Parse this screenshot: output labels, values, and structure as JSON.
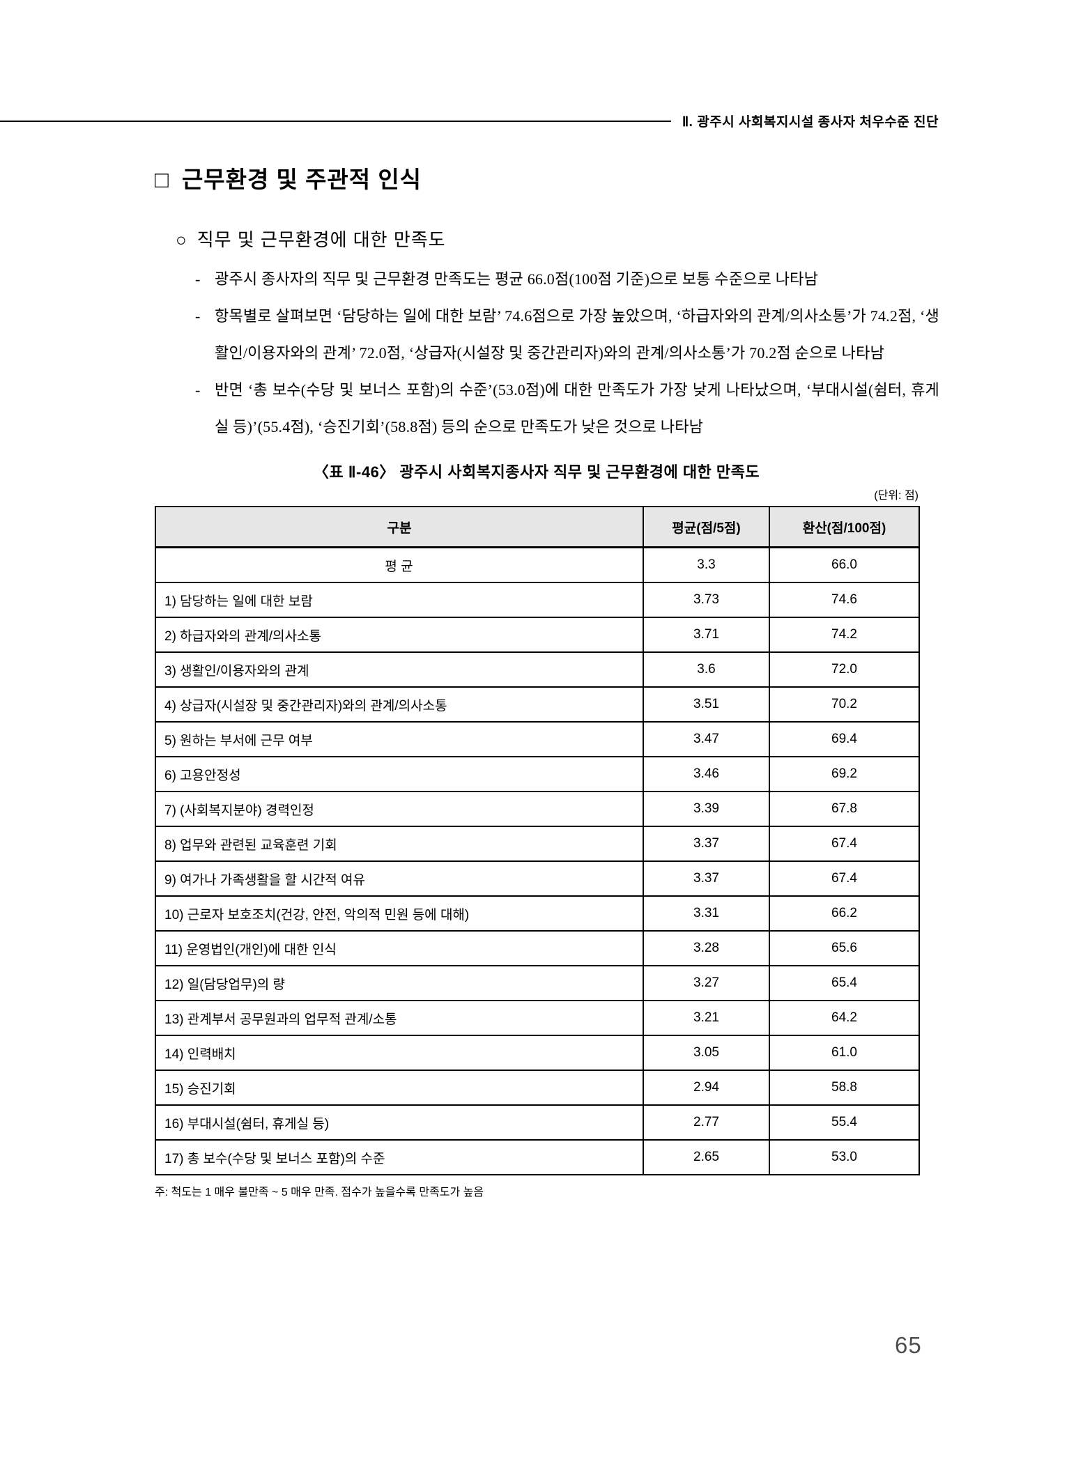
{
  "running_head": "Ⅱ. 광주시 사회복지시설 종사자 처우수준 진단",
  "section": {
    "marker": "□",
    "title": "근무환경 및 주관적 인식"
  },
  "subsection": {
    "marker": "○",
    "title": "직무 및 근무환경에 대한 만족도"
  },
  "bullets": [
    {
      "marker": "-",
      "text": "광주시 종사자의 직무 및 근무환경 만족도는 평균 66.0점(100점 기준)으로 보통 수준으로 나타남"
    },
    {
      "marker": "-",
      "text": "항목별로 살펴보면 ‘담당하는 일에 대한 보람’ 74.6점으로 가장 높았으며, ‘하급자와의 관계/의사소통’가 74.2점, ‘생활인/이용자와의 관계’ 72.0점, ‘상급자(시설장 및 중간관리자)와의 관계/의사소통’가 70.2점 순으로 나타남"
    },
    {
      "marker": "-",
      "text": "반면 ‘총 보수(수당 및 보너스 포함)의 수준’(53.0점)에 대한 만족도가 가장 낮게 나타났으며, ‘부대시설(쉼터, 휴게실 등)’(55.4점), ‘승진기회’(58.8점) 등의 순으로 만족도가 낮은 것으로 나타남"
    }
  ],
  "table": {
    "caption": "〈표 Ⅱ-46〉 광주시 사회복지종사자 직무 및 근무환경에 대한 만족도",
    "unit_note": "(단위: 점)",
    "columns": [
      "구분",
      "평균(점/5점)",
      "환산(점/100점)"
    ],
    "rows": [
      {
        "label": "평 균",
        "avg": "3.3",
        "conv": "66.0",
        "summary": true
      },
      {
        "label": "1) 담당하는 일에 대한 보람",
        "avg": "3.73",
        "conv": "74.6"
      },
      {
        "label": "2) 하급자와의 관계/의사소통",
        "avg": "3.71",
        "conv": "74.2"
      },
      {
        "label": "3) 생활인/이용자와의 관계",
        "avg": "3.6",
        "conv": "72.0"
      },
      {
        "label": "4) 상급자(시설장 및 중간관리자)와의 관계/의사소통",
        "avg": "3.51",
        "conv": "70.2"
      },
      {
        "label": "5) 원하는 부서에 근무 여부",
        "avg": "3.47",
        "conv": "69.4"
      },
      {
        "label": "6) 고용안정성",
        "avg": "3.46",
        "conv": "69.2"
      },
      {
        "label": "7) (사회복지분야) 경력인정",
        "avg": "3.39",
        "conv": "67.8"
      },
      {
        "label": "8) 업무와 관련된 교육훈련 기회",
        "avg": "3.37",
        "conv": "67.4"
      },
      {
        "label": "9) 여가나 가족생활을 할 시간적 여유",
        "avg": "3.37",
        "conv": "67.4"
      },
      {
        "label": "10) 근로자 보호조치(건강, 안전, 악의적 민원 등에 대해)",
        "avg": "3.31",
        "conv": "66.2"
      },
      {
        "label": "11) 운영법인(개인)에 대한 인식",
        "avg": "3.28",
        "conv": "65.6"
      },
      {
        "label": "12) 일(담당업무)의 량",
        "avg": "3.27",
        "conv": "65.4"
      },
      {
        "label": "13) 관계부서 공무원과의 업무적 관계/소통",
        "avg": "3.21",
        "conv": "64.2"
      },
      {
        "label": "14) 인력배치",
        "avg": "3.05",
        "conv": "61.0"
      },
      {
        "label": "15) 승진기회",
        "avg": "2.94",
        "conv": "58.8"
      },
      {
        "label": "16) 부대시설(쉼터, 휴게실 등)",
        "avg": "2.77",
        "conv": "55.4"
      },
      {
        "label": "17) 총 보수(수당 및 보너스 포함)의 수준",
        "avg": "2.65",
        "conv": "53.0"
      }
    ]
  },
  "footnote": "주: 척도는 1 매우 불만족 ~ 5 매우 만족. 점수가 높을수록 만족도가 높음",
  "page_number": "65",
  "colors": {
    "header_row_bg": "#e6e6e6",
    "border": "#000000",
    "page_number_gray": "#4d4d4d"
  }
}
